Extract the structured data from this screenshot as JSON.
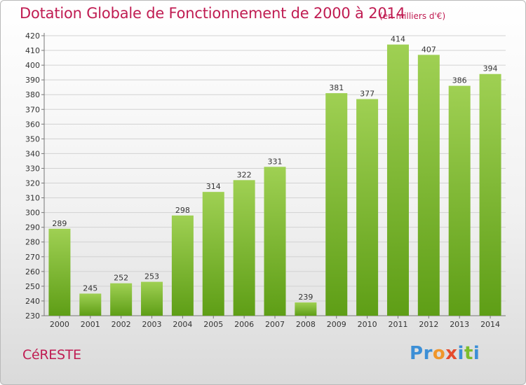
{
  "title": "Dotation Globale de Fonctionnement de 2000 à 2014",
  "subtitle": "(en milliers d'€)",
  "commune": "CéRESTE",
  "brand": {
    "letters": [
      {
        "ch": "P",
        "color": "#3c8fd6"
      },
      {
        "ch": "r",
        "color": "#3c8fd6"
      },
      {
        "ch": "o",
        "color": "#f0962a"
      },
      {
        "ch": "x",
        "color": "#e54b2d"
      },
      {
        "ch": "i",
        "color": "#3c8fd6"
      },
      {
        "ch": "t",
        "color": "#7cbd2c"
      },
      {
        "ch": "i",
        "color": "#3c8fd6"
      }
    ]
  },
  "colors": {
    "bar_top": "#9fd053",
    "bar_bottom": "#5e9e16",
    "accent": "#c01c52",
    "grid": "#d2d2d2"
  },
  "chart_data": {
    "type": "bar",
    "categories": [
      "2000",
      "2001",
      "2002",
      "2003",
      "2004",
      "2005",
      "2006",
      "2007",
      "2008",
      "2009",
      "2010",
      "2011",
      "2012",
      "2013",
      "2014"
    ],
    "values": [
      289,
      245,
      252,
      253,
      298,
      314,
      322,
      331,
      239,
      381,
      377,
      414,
      407,
      386,
      394
    ],
    "title": "Dotation Globale de Fonctionnement de 2000 à 2014",
    "ylim": [
      230,
      420
    ],
    "ytick_step": 10,
    "grid": true
  }
}
